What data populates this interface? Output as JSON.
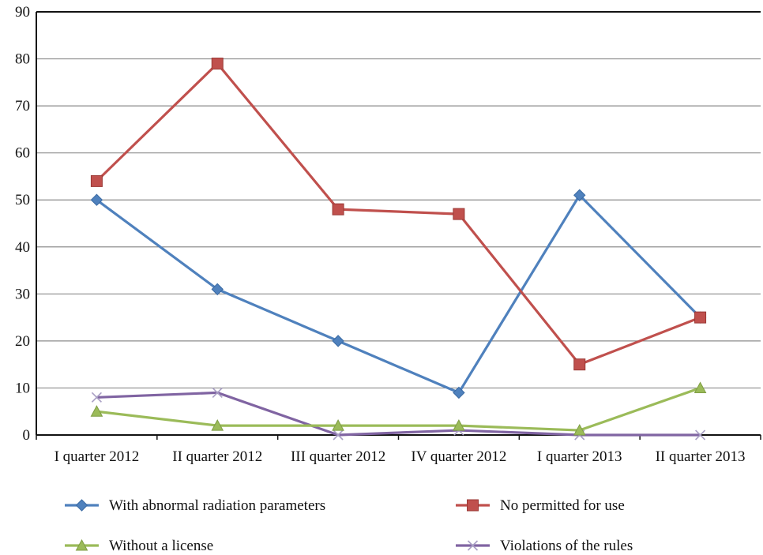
{
  "chart_data": {
    "type": "line",
    "title": "",
    "xlabel": "",
    "ylabel": "",
    "ylim": [
      0,
      90
    ],
    "yticks": [
      0,
      10,
      20,
      30,
      40,
      50,
      60,
      70,
      80,
      90
    ],
    "grid": true,
    "legend_position": "bottom",
    "categories": [
      "I quarter 2012",
      "II quarter 2012",
      "III quarter 2012",
      "IV quarter 2012",
      "I quarter 2013",
      "II quarter 2013"
    ],
    "series": [
      {
        "name": "With abnormal radiation parameters",
        "values": [
          50,
          31,
          20,
          9,
          51,
          25
        ],
        "color": "#4f81bd",
        "marker": "diamond"
      },
      {
        "name": "No permitted for use",
        "values": [
          54,
          79,
          48,
          47,
          15,
          25
        ],
        "color": "#c0504d",
        "marker": "square"
      },
      {
        "name": "Without a license",
        "values": [
          5,
          2,
          2,
          2,
          1,
          10
        ],
        "color": "#9bbb59",
        "marker": "triangle"
      },
      {
        "name": "Violations of the rules",
        "values": [
          8,
          9,
          0,
          1,
          0,
          0
        ],
        "color": "#8064a2",
        "marker": "x"
      }
    ]
  }
}
